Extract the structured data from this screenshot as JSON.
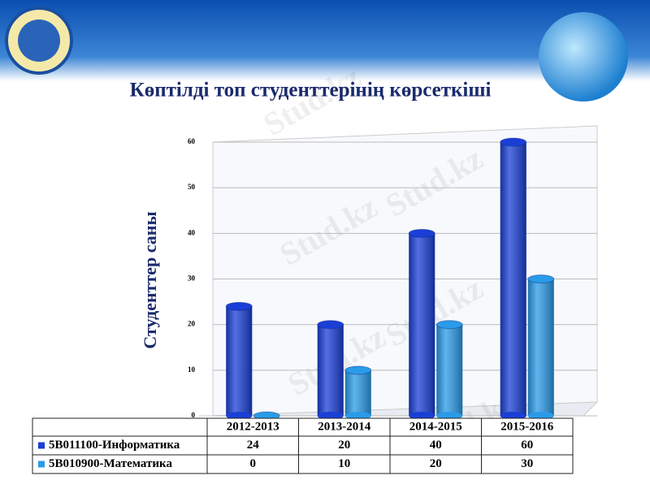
{
  "chart_data": {
    "type": "bar",
    "title": "Көптілді топ студенттерінің көрсеткіші",
    "y_label": "Студенттер саны",
    "watermark": "Stud.kz",
    "categories": [
      "2012-2013",
      "2013-2014",
      "2014-2015",
      "2015-2016"
    ],
    "series": [
      {
        "name": "5B011100-Информатика",
        "color": "#1a3fd6",
        "values": [
          24,
          20,
          40,
          60
        ]
      },
      {
        "name": "5B010900-Математика",
        "color": "#2a9be8",
        "values": [
          0,
          10,
          20,
          30
        ]
      }
    ],
    "ylim": [
      0,
      60
    ],
    "yticks": [
      0,
      10,
      20,
      30,
      40,
      50,
      60
    ],
    "grid": true
  }
}
